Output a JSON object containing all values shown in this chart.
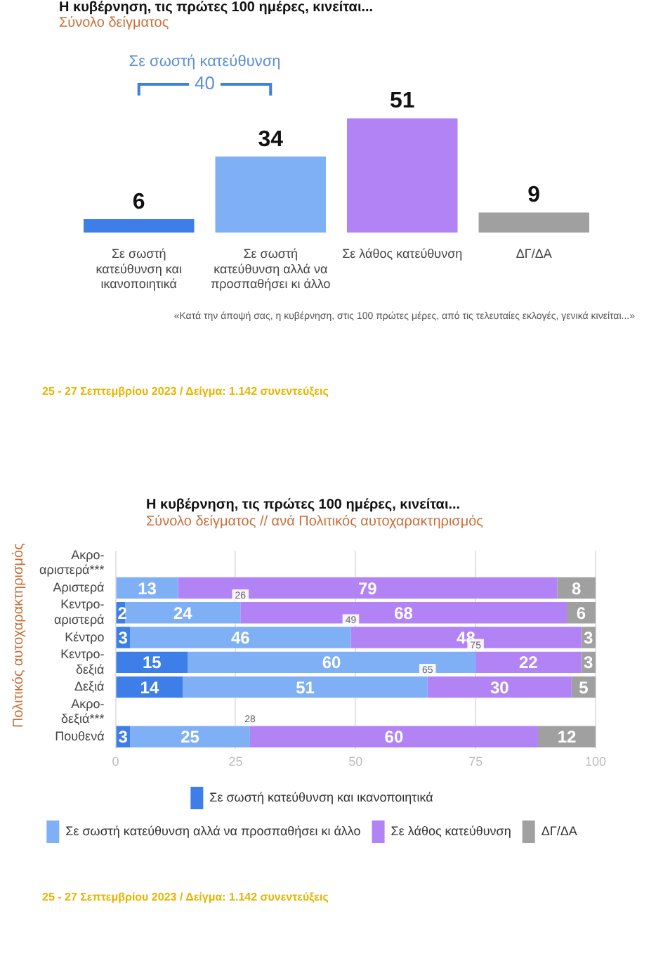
{
  "chart_data": [
    {
      "type": "bar",
      "title": "Η κυβέρνηση, τις πρώτες 100 ημέρες, κινείται...",
      "subtitle": "Σύνολο δείγματος",
      "categories": [
        "Σε σωστή κατεύθυνση και ικανοποιητικά",
        "Σε σωστή κατεύθυνση αλλά να προσπαθήσει κι άλλο",
        "Σε λάθος κατεύθυνση",
        "ΔΓ/ΔΑ"
      ],
      "values": [
        6,
        34,
        51,
        9
      ],
      "colors": [
        "#3d7ee8",
        "#7fb0f5",
        "#b283f5",
        "#a0a0a0"
      ],
      "data_labels": true,
      "grid": false,
      "legend": false,
      "tick_labels": "x",
      "annotations": [
        "Σε σωστή κατεύθυνση",
        "40",
        "«Κατά την άποψή σας, η κυβέρνηση, στις 100 πρώτες μέρες, από τις τελευταίες εκλογές, γενικά κινείται...»",
        "25 - 27  Σεπτεμβρίου  2023  /  Δείγμα:  1.142 συνεντεύξεις"
      ]
    },
    {
      "type": "bar",
      "orientation": "horizontal",
      "stacked": true,
      "title": "Η κυβέρνηση, τις πρώτες 100 ημέρες, κινείται...",
      "subtitle": "Σύνολο δείγματος // ανά Πολιτικός αυτοχαρακτηρισμός",
      "ylabel": "Πολιτικός αυτοχαρακτηρισμός",
      "categories": [
        "Ακρο-αριστερά***",
        "Αριστερά",
        "Κεντρο-αριστερά",
        "Κέντρο",
        "Κεντρο-δεξιά",
        "Δεξιά",
        "Ακρο-δεξιά***",
        "Πουθενά"
      ],
      "series": [
        {
          "name": "Σε σωστή κατεύθυνση και ικανοποιητικά",
          "color": "#3d7ee8",
          "values": [
            null,
            null,
            2,
            3,
            15,
            14,
            null,
            3
          ]
        },
        {
          "name": "Σε σωστή κατεύθυνση αλλά να προσπαθήσει κι άλλο",
          "color": "#7fb0f5",
          "values": [
            null,
            13,
            24,
            46,
            60,
            51,
            null,
            25
          ]
        },
        {
          "name": "Σε λάθος κατεύθυνση",
          "color": "#b283f5",
          "values": [
            null,
            79,
            68,
            48,
            22,
            30,
            null,
            60
          ]
        },
        {
          "name": "ΔΓ/ΔΑ",
          "color": "#a0a0a0",
          "values": [
            null,
            8,
            6,
            3,
            3,
            5,
            null,
            12
          ]
        }
      ],
      "xlim": [
        0,
        100
      ],
      "xticks": [
        0,
        25,
        50,
        75,
        100
      ],
      "grid": "x",
      "legend": "bottom",
      "data_labels": true,
      "annotations": [
        {
          "text": "26",
          "x": 26,
          "y": "Κεντρο-αριστερά"
        },
        {
          "text": "49",
          "x": 49,
          "y": "Κέντρο"
        },
        {
          "text": "75",
          "x": 75,
          "y": "Κεντρο-δεξιά"
        },
        {
          "text": "65",
          "x": 65,
          "y": "Δεξιά"
        },
        {
          "text": "28",
          "x": 28,
          "y": "Πουθενά"
        },
        "25 - 27  Σεπτεμβρίου  2023  /  Δείγμα:  1.142 συνεντεύξεις"
      ]
    }
  ]
}
